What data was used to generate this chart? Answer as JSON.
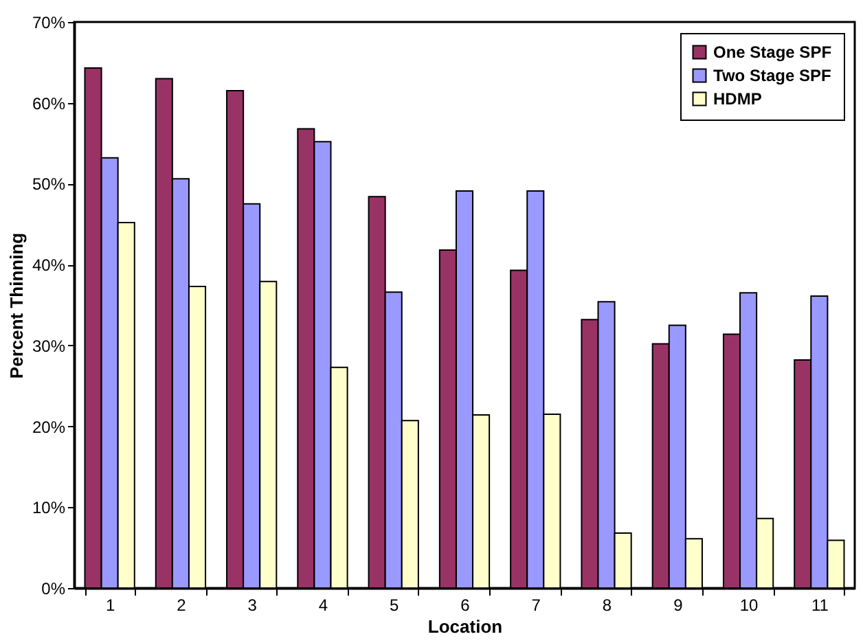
{
  "chart_data": {
    "type": "bar",
    "xlabel": "Location",
    "ylabel": "Percent Thinning",
    "categories": [
      "1",
      "2",
      "3",
      "4",
      "5",
      "6",
      "7",
      "8",
      "9",
      "10",
      "11"
    ],
    "series": [
      {
        "name": "One Stage SPF",
        "color": "#993366",
        "values": [
          64.3,
          63,
          61.5,
          56.8,
          48.4,
          41.8,
          39.3,
          33.2,
          30.2,
          31.4,
          28.2
        ]
      },
      {
        "name": "Two Stage SPF",
        "color": "#9999ff",
        "values": [
          53.2,
          50.6,
          47.5,
          55.2,
          36.6,
          49.1,
          49.1,
          35.4,
          32.5,
          36.5,
          36.1
        ]
      },
      {
        "name": "HDMP",
        "color": "#ffffcc",
        "values": [
          45.2,
          37.3,
          37.9,
          27.3,
          20.7,
          21.4,
          21.5,
          6.8,
          6.1,
          8.6,
          5.9
        ]
      }
    ],
    "ylim": [
      0,
      70
    ],
    "yticks": [
      {
        "value": 0,
        "label": "0%"
      },
      {
        "value": 10,
        "label": "10%"
      },
      {
        "value": 20,
        "label": "20%"
      },
      {
        "value": 30,
        "label": "30%"
      },
      {
        "value": 40,
        "label": "40%"
      },
      {
        "value": 50,
        "label": "50%"
      },
      {
        "value": 60,
        "label": "60%"
      },
      {
        "value": 70,
        "label": "70%"
      }
    ],
    "grid": false,
    "legend": "top right"
  }
}
